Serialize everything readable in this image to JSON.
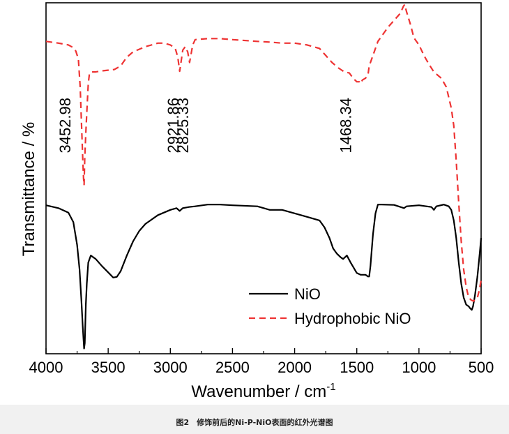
{
  "chart_data": {
    "type": "line",
    "xlabel": "Wavenumber  / cm",
    "xlabel_sup": "-1",
    "ylabel": "Transmittance / %",
    "xlim": [
      4000,
      500
    ],
    "ylim": [
      0,
      100
    ],
    "x_ticks": [
      "4000",
      "3500",
      "3000",
      "2500",
      "2000",
      "1500",
      "1000",
      "500"
    ],
    "x_tick_values": [
      4000,
      3500,
      3000,
      2500,
      2000,
      1500,
      1000,
      500
    ],
    "legend_position": "bottom-right",
    "series": [
      {
        "name": "NiO",
        "color": "#000000",
        "dash": "solid",
        "points": [
          [
            4000,
            42.3
          ],
          [
            3900,
            41.5
          ],
          [
            3820,
            40.2
          ],
          [
            3780,
            37.5
          ],
          [
            3750,
            31
          ],
          [
            3730,
            24
          ],
          [
            3715,
            15
          ],
          [
            3705,
            8
          ],
          [
            3698,
            4
          ],
          [
            3694,
            1.5
          ],
          [
            3688,
            3
          ],
          [
            3680,
            14
          ],
          [
            3672,
            20
          ],
          [
            3660,
            26
          ],
          [
            3640,
            28
          ],
          [
            3600,
            27
          ],
          [
            3550,
            25
          ],
          [
            3500,
            23.2
          ],
          [
            3460,
            21.7
          ],
          [
            3430,
            21.9
          ],
          [
            3400,
            23.5
          ],
          [
            3350,
            28
          ],
          [
            3300,
            32
          ],
          [
            3250,
            35
          ],
          [
            3200,
            37
          ],
          [
            3100,
            39.5
          ],
          [
            3000,
            41
          ],
          [
            2950,
            41.5
          ],
          [
            2925,
            40.7
          ],
          [
            2900,
            41.5
          ],
          [
            2850,
            41.8
          ],
          [
            2800,
            42
          ],
          [
            2700,
            42.5
          ],
          [
            2600,
            42.5
          ],
          [
            2500,
            42.3
          ],
          [
            2300,
            42
          ],
          [
            2200,
            41
          ],
          [
            2100,
            41
          ],
          [
            2000,
            40
          ],
          [
            1900,
            39
          ],
          [
            1800,
            38
          ],
          [
            1760,
            36
          ],
          [
            1720,
            33
          ],
          [
            1690,
            30
          ],
          [
            1660,
            28.5
          ],
          [
            1630,
            27.5
          ],
          [
            1610,
            27
          ],
          [
            1580,
            28
          ],
          [
            1550,
            26
          ],
          [
            1500,
            23
          ],
          [
            1470,
            22.5
          ],
          [
            1430,
            22.5
          ],
          [
            1410,
            22
          ],
          [
            1400,
            22
          ],
          [
            1390,
            25
          ],
          [
            1370,
            34
          ],
          [
            1350,
            40
          ],
          [
            1330,
            42.5
          ],
          [
            1300,
            42.5
          ],
          [
            1200,
            42.4
          ],
          [
            1120,
            41.5
          ],
          [
            1100,
            42
          ],
          [
            1000,
            42.3
          ],
          [
            900,
            41.8
          ],
          [
            880,
            41
          ],
          [
            860,
            42
          ],
          [
            800,
            42.5
          ],
          [
            760,
            42
          ],
          [
            740,
            41
          ],
          [
            720,
            38
          ],
          [
            700,
            33
          ],
          [
            680,
            26
          ],
          [
            660,
            20
          ],
          [
            640,
            16
          ],
          [
            620,
            14
          ],
          [
            600,
            13.5
          ],
          [
            590,
            13
          ],
          [
            575,
            12.5
          ],
          [
            565,
            13.5
          ],
          [
            550,
            16.5
          ],
          [
            530,
            22
          ],
          [
            510,
            29
          ],
          [
            500,
            33
          ]
        ]
      },
      {
        "name": "Hydrophobic NiO",
        "color": "#ee3333",
        "dash": "dashed",
        "points": [
          [
            4000,
            89
          ],
          [
            3900,
            88.5
          ],
          [
            3820,
            88
          ],
          [
            3780,
            87.2
          ],
          [
            3760,
            86.2
          ],
          [
            3740,
            84
          ],
          [
            3725,
            76
          ],
          [
            3715,
            66
          ],
          [
            3705,
            56
          ],
          [
            3698,
            50
          ],
          [
            3694,
            48
          ],
          [
            3688,
            56
          ],
          [
            3680,
            63
          ],
          [
            3670,
            70
          ],
          [
            3660,
            77
          ],
          [
            3650,
            80
          ],
          [
            3630,
            80.3
          ],
          [
            3600,
            80.3
          ],
          [
            3550,
            80.6
          ],
          [
            3450,
            81
          ],
          [
            3400,
            82
          ],
          [
            3350,
            84.5
          ],
          [
            3300,
            86
          ],
          [
            3200,
            87.5
          ],
          [
            3100,
            88.5
          ],
          [
            3050,
            88.5
          ],
          [
            3000,
            88
          ],
          [
            2960,
            87
          ],
          [
            2940,
            84.5
          ],
          [
            2925,
            80.5
          ],
          [
            2910,
            84
          ],
          [
            2900,
            86.5
          ],
          [
            2880,
            87.5
          ],
          [
            2860,
            86
          ],
          [
            2845,
            83
          ],
          [
            2830,
            86
          ],
          [
            2820,
            88
          ],
          [
            2800,
            89.5
          ],
          [
            2700,
            89.8
          ],
          [
            2600,
            89.8
          ],
          [
            2500,
            89.5
          ],
          [
            2300,
            89
          ],
          [
            2200,
            88.8
          ],
          [
            2100,
            88.5
          ],
          [
            2000,
            88.5
          ],
          [
            1900,
            88
          ],
          [
            1800,
            87
          ],
          [
            1750,
            85
          ],
          [
            1700,
            83
          ],
          [
            1650,
            81.5
          ],
          [
            1600,
            80.3
          ],
          [
            1560,
            80
          ],
          [
            1530,
            78.5
          ],
          [
            1500,
            77.5
          ],
          [
            1480,
            77.5
          ],
          [
            1468,
            77
          ],
          [
            1455,
            78
          ],
          [
            1430,
            78.5
          ],
          [
            1410,
            79.5
          ],
          [
            1400,
            82
          ],
          [
            1380,
            84
          ],
          [
            1360,
            86
          ],
          [
            1330,
            89
          ],
          [
            1300,
            90.5
          ],
          [
            1250,
            93
          ],
          [
            1200,
            95
          ],
          [
            1150,
            97
          ],
          [
            1125,
            99
          ],
          [
            1115,
            99.5
          ],
          [
            1100,
            97.5
          ],
          [
            1070,
            94
          ],
          [
            1040,
            90
          ],
          [
            1000,
            88
          ],
          [
            960,
            85
          ],
          [
            920,
            82.5
          ],
          [
            880,
            80.3
          ],
          [
            820,
            78.5
          ],
          [
            780,
            76
          ],
          [
            740,
            70
          ],
          [
            720,
            65
          ],
          [
            700,
            55
          ],
          [
            680,
            43
          ],
          [
            660,
            32
          ],
          [
            640,
            24
          ],
          [
            620,
            19
          ],
          [
            600,
            16
          ],
          [
            580,
            15.3
          ],
          [
            560,
            15
          ],
          [
            545,
            15.8
          ],
          [
            530,
            16
          ],
          [
            515,
            18
          ],
          [
            505,
            20
          ],
          [
            500,
            21
          ]
        ]
      }
    ],
    "annotations": [
      {
        "text": "3452.98",
        "x": 3805
      },
      {
        "text": "2921.86",
        "x": 2935
      },
      {
        "text": "2825.33",
        "x": 2855
      },
      {
        "text": "1468.34",
        "x": 1545
      }
    ]
  },
  "caption": "图2　修饰前后的Ni-P-NiO表面的红外光谱图"
}
